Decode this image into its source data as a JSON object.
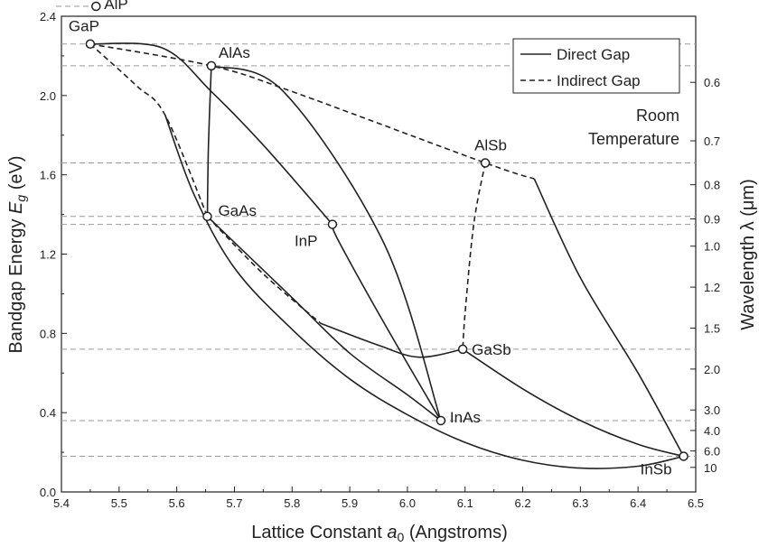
{
  "chart_data": {
    "type": "line",
    "xlabel": "Lattice Constant a0 (Angstroms)",
    "ylabel": "Bandgap Energy Eg (eV)",
    "y2label": "Wavelength λ (μm)",
    "xlim": [
      5.4,
      6.5
    ],
    "ylim": [
      0.0,
      2.4
    ],
    "x_ticks": [
      5.4,
      5.5,
      5.6,
      5.7,
      5.8,
      5.9,
      6.0,
      6.1,
      6.2,
      6.3,
      6.4,
      6.5
    ],
    "y_ticks": [
      0.0,
      0.4,
      0.8,
      1.2,
      1.6,
      2.0,
      2.4
    ],
    "wavelength_ticks_um": [
      0.6,
      0.7,
      0.8,
      0.9,
      1.0,
      1.2,
      1.5,
      2.0,
      3.0,
      4.0,
      6.0,
      10
    ],
    "annotation": [
      "Room",
      "Temperature"
    ],
    "legend": {
      "position": "top-right",
      "entries": [
        {
          "label": "Direct Gap",
          "style": "solid"
        },
        {
          "label": "Indirect Gap",
          "style": "dashed"
        }
      ]
    },
    "points": [
      {
        "name": "AlP",
        "x": 5.46,
        "y": 2.45
      },
      {
        "name": "GaP",
        "x": 5.45,
        "y": 2.26
      },
      {
        "name": "AlAs",
        "x": 5.66,
        "y": 2.15
      },
      {
        "name": "AlSb",
        "x": 6.135,
        "y": 1.66
      },
      {
        "name": "GaAs",
        "x": 5.653,
        "y": 1.39
      },
      {
        "name": "InP",
        "x": 5.87,
        "y": 1.35
      },
      {
        "name": "GaSb",
        "x": 6.096,
        "y": 0.72
      },
      {
        "name": "InAs",
        "x": 6.058,
        "y": 0.36
      },
      {
        "name": "InSb",
        "x": 6.479,
        "y": 0.18
      }
    ],
    "reference_lines_ev": [
      2.45,
      2.26,
      2.15,
      1.66,
      1.39,
      1.35,
      0.72,
      0.36,
      0.18
    ],
    "curves": [
      {
        "id": "gap-dashed-top",
        "style": "dashed",
        "points": [
          [
            5.45,
            2.26
          ],
          [
            5.66,
            2.15
          ],
          [
            5.8,
            2.02
          ],
          [
            6.135,
            1.66
          ],
          [
            6.22,
            1.58
          ]
        ]
      },
      {
        "id": "gap-direct-top",
        "style": "solid",
        "points": [
          [
            5.45,
            2.26
          ],
          [
            5.575,
            2.24
          ],
          [
            5.66,
            2.02
          ],
          [
            5.75,
            1.75
          ],
          [
            5.87,
            1.35
          ]
        ]
      },
      {
        "id": "gaas-gap-left",
        "style": "dashed",
        "points": [
          [
            5.45,
            2.26
          ],
          [
            5.53,
            2.05
          ],
          [
            5.58,
            1.9
          ],
          [
            5.653,
            1.39
          ]
        ]
      },
      {
        "id": "alas-gaas",
        "style": "solid",
        "points": [
          [
            5.66,
            2.15
          ],
          [
            5.655,
            1.75
          ],
          [
            5.653,
            1.39
          ]
        ]
      },
      {
        "id": "alsb-gasb",
        "style": "dashed",
        "points": [
          [
            6.135,
            1.66
          ],
          [
            6.115,
            1.35
          ],
          [
            6.1,
            0.9
          ],
          [
            6.096,
            0.72
          ]
        ]
      },
      {
        "id": "gaas-insb",
        "style": "solid",
        "points": [
          [
            5.58,
            1.9
          ],
          [
            5.63,
            1.5
          ],
          [
            5.7,
            1.13
          ],
          [
            5.8,
            0.82
          ],
          [
            5.9,
            0.57
          ],
          [
            6.0,
            0.39
          ],
          [
            6.1,
            0.25
          ],
          [
            6.2,
            0.16
          ],
          [
            6.3,
            0.12
          ],
          [
            6.4,
            0.13
          ],
          [
            6.479,
            0.18
          ]
        ]
      },
      {
        "id": "gaas-inas",
        "style": "solid",
        "points": [
          [
            5.653,
            1.39
          ],
          [
            5.8,
            0.98
          ],
          [
            5.9,
            0.7
          ],
          [
            6.0,
            0.49
          ],
          [
            6.058,
            0.36
          ]
        ]
      },
      {
        "id": "inp-inas",
        "style": "solid",
        "points": [
          [
            5.87,
            1.35
          ],
          [
            5.88,
            1.27
          ],
          [
            5.96,
            0.85
          ],
          [
            6.058,
            0.36
          ]
        ]
      },
      {
        "id": "alas-inas",
        "style": "solid",
        "points": [
          [
            5.66,
            2.15
          ],
          [
            5.785,
            2.02
          ],
          [
            5.96,
            1.25
          ],
          [
            6.058,
            0.36
          ]
        ]
      },
      {
        "id": "gaas-gasb-dashed",
        "style": "dashed",
        "points": [
          [
            5.653,
            1.39
          ],
          [
            5.75,
            1.1
          ],
          [
            5.85,
            0.85
          ]
        ]
      },
      {
        "id": "gaas-gasb-solid",
        "style": "solid",
        "points": [
          [
            5.85,
            0.85
          ],
          [
            5.95,
            0.74
          ],
          [
            6.02,
            0.68
          ],
          [
            6.096,
            0.72
          ]
        ]
      },
      {
        "id": "gasb-insb",
        "style": "solid",
        "points": [
          [
            6.096,
            0.72
          ],
          [
            6.2,
            0.52
          ],
          [
            6.3,
            0.36
          ],
          [
            6.4,
            0.24
          ],
          [
            6.479,
            0.18
          ]
        ]
      },
      {
        "id": "alsb-insb",
        "style": "solid",
        "points": [
          [
            6.22,
            1.58
          ],
          [
            6.3,
            1.08
          ],
          [
            6.4,
            0.6
          ],
          [
            6.479,
            0.18
          ]
        ]
      }
    ]
  }
}
